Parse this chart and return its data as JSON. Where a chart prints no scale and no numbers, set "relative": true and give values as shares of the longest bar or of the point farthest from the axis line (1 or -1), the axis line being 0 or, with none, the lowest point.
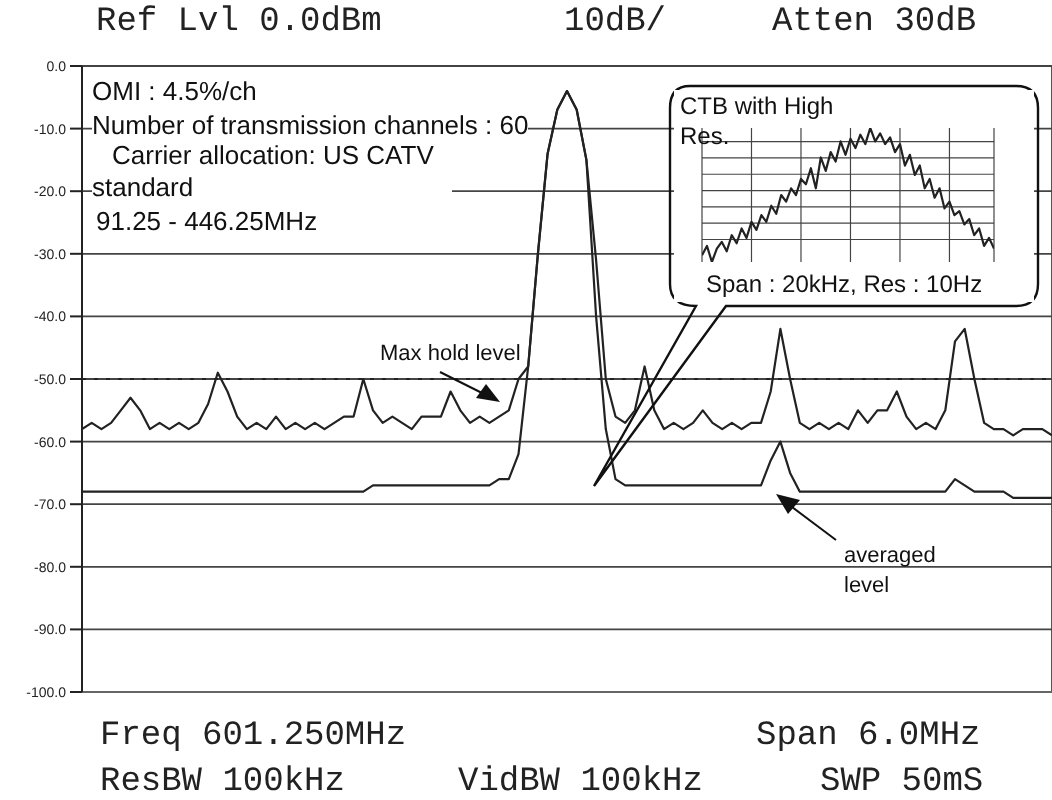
{
  "chart_data": [
    {
      "type": "line",
      "categories": [
        null,
        null,
        null,
        null,
        null,
        null,
        null,
        null,
        null,
        null,
        null,
        null,
        null,
        null,
        null,
        null,
        null,
        null,
        null,
        null,
        null,
        null,
        null,
        null,
        null,
        null,
        null,
        null,
        null,
        null,
        null,
        null,
        null,
        null,
        null,
        null,
        null,
        null,
        null,
        null,
        null,
        null,
        null,
        null,
        null,
        null,
        null,
        null,
        null,
        null,
        null,
        null,
        null,
        null,
        null,
        null,
        null,
        null,
        null,
        null,
        null,
        null,
        null,
        null,
        null,
        null,
        null,
        null,
        null,
        null,
        null,
        null,
        null,
        null,
        null,
        null,
        null,
        null,
        null,
        null,
        null,
        null,
        null,
        null,
        null,
        null,
        null,
        null,
        null,
        null,
        null,
        null,
        null,
        null,
        null,
        null,
        null,
        null,
        null,
        null,
        null
      ],
      "series": [
        {
          "name": "Max hold level",
          "color": "#222222",
          "values": [
            -58,
            -57,
            -58,
            -57,
            -55,
            -53,
            -55,
            -58,
            -57,
            -58,
            -57,
            -58,
            -57,
            -54,
            -49,
            -52,
            -56,
            -58,
            -57,
            -58,
            -56,
            -58,
            -57,
            -58,
            -57,
            -58,
            -57,
            -56,
            -56,
            -50,
            -55,
            -57,
            -56,
            -57,
            -58,
            -56,
            -56,
            -56,
            -52,
            -55,
            -57,
            -56,
            -57,
            -56,
            -55,
            -50,
            -48,
            -30,
            -14,
            -7,
            -4,
            -7,
            -15,
            -31,
            -50,
            -56,
            -57,
            -55,
            -48,
            -55,
            -58,
            -57,
            -58,
            -57,
            -55,
            -57,
            -58,
            -57,
            -58,
            -57,
            -57,
            -52,
            -42,
            -50,
            -57,
            -58,
            -57,
            -58,
            -57,
            -58,
            -55,
            -57,
            -55,
            -55,
            -52,
            -56,
            -58,
            -57,
            -58,
            -55,
            -44,
            -42,
            -50,
            -57,
            -58,
            -58,
            -59,
            -58,
            -58,
            -58,
            -59
          ]
        },
        {
          "name": "averaged level",
          "color": "#222222",
          "values": [
            -68,
            -68,
            -68,
            -68,
            -68,
            -68,
            -68,
            -68,
            -68,
            -68,
            -68,
            -68,
            -68,
            -68,
            -68,
            -68,
            -68,
            -68,
            -68,
            -68,
            -68,
            -68,
            -68,
            -68,
            -68,
            -68,
            -68,
            -68,
            -68,
            -68,
            -67,
            -67,
            -67,
            -67,
            -67,
            -67,
            -67,
            -67,
            -67,
            -67,
            -67,
            -67,
            -67,
            -66,
            -66,
            -62,
            -48,
            -30,
            -14,
            -7,
            -4,
            -7,
            -15,
            -40,
            -58,
            -66,
            -67,
            -67,
            -67,
            -67,
            -67,
            -67,
            -67,
            -67,
            -67,
            -67,
            -67,
            -67,
            -67,
            -67,
            -67,
            -63,
            -60,
            -65,
            -68,
            -68,
            -68,
            -68,
            -68,
            -68,
            -68,
            -68,
            -68,
            -68,
            -68,
            -68,
            -68,
            -68,
            -68,
            -68,
            -66,
            -67,
            -68,
            -68,
            -68,
            -68,
            -69,
            -69,
            -69,
            -69,
            -69
          ]
        }
      ],
      "ylim": [
        -100,
        0
      ],
      "yticks": [
        {
          "value": 0,
          "label": "0.0"
        },
        {
          "value": -10,
          "label": "-10.0"
        },
        {
          "value": -20,
          "label": "-20.0"
        },
        {
          "value": -30,
          "label": "-30.0"
        },
        {
          "value": -40,
          "label": "-40.0"
        },
        {
          "value": -50,
          "label": "-50.0"
        },
        {
          "value": -60,
          "label": "-60.0"
        },
        {
          "value": -70,
          "label": "-70.0"
        },
        {
          "value": -80,
          "label": "-80.0"
        },
        {
          "value": -90,
          "label": "-90.0"
        },
        {
          "value": -100,
          "label": "-100.0"
        }
      ],
      "grid": true,
      "tick_labels": "y",
      "ref_lines": [
        {
          "axis": "y",
          "value": -50,
          "line_style": "dotted"
        }
      ],
      "annotations": [
        "Ref Lvl 0.0dBm",
        "10dB/",
        "Atten 30dB",
        "OMI : 4.5%/ch",
        "Number of transmission channels : 60",
        "Carrier allocation: US CATV standard",
        "91.25 - 446.25MHz",
        "Freq 601.250MHz",
        "Span 6.0MHz",
        "ResBW 100kHz",
        "VidBW 100kHz",
        "SWP 50mS"
      ]
    },
    {
      "type": "line",
      "relative": true,
      "title": "CTB with High Res.",
      "annotations": [
        "Span : 20kHz, Res : 10Hz"
      ],
      "grid": true,
      "categories": [
        null,
        null,
        null,
        null,
        null,
        null,
        null,
        null,
        null,
        null,
        null,
        null,
        null,
        null,
        null,
        null,
        null,
        null,
        null,
        null,
        null,
        null,
        null,
        null,
        null,
        null,
        null,
        null,
        null,
        null,
        null,
        null,
        null,
        null,
        null,
        null,
        null,
        null,
        null,
        null,
        null,
        null,
        null,
        null,
        null,
        null,
        null,
        null,
        null,
        null,
        null,
        null,
        null,
        null,
        null,
        null,
        null,
        null,
        null,
        null
      ],
      "series": [
        {
          "color": "#222222",
          "values": [
            0.05,
            0.12,
            0.0,
            0.1,
            0.15,
            0.08,
            0.2,
            0.14,
            0.25,
            0.18,
            0.3,
            0.24,
            0.35,
            0.3,
            0.42,
            0.36,
            0.5,
            0.45,
            0.55,
            0.5,
            0.62,
            0.58,
            0.7,
            0.55,
            0.78,
            0.68,
            0.82,
            0.75,
            0.9,
            0.8,
            0.92,
            0.85,
            0.95,
            0.88,
            1.0,
            0.9,
            0.96,
            0.88,
            0.93,
            0.82,
            0.88,
            0.72,
            0.8,
            0.65,
            0.72,
            0.55,
            0.62,
            0.48,
            0.55,
            0.4,
            0.45,
            0.35,
            0.38,
            0.28,
            0.32,
            0.2,
            0.25,
            0.12,
            0.18,
            0.1
          ]
        }
      ]
    }
  ]
}
